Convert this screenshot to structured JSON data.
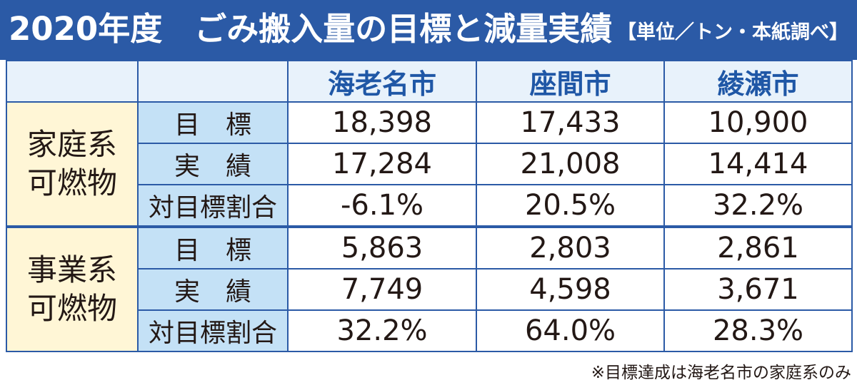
{
  "header": {
    "title": "2020年度　ごみ搬入量の目標と減量実績",
    "unit_note": "【単位／トン・本紙調べ】"
  },
  "colors": {
    "header_bg": "#2b5aa6",
    "city_header_bg": "#e8f2fb",
    "city_text": "#1f57a6",
    "group_bg": "#fff6d6",
    "metric_bg": "#c4e1f6"
  },
  "table": {
    "columns": [
      "海老名市",
      "座間市",
      "綾瀬市"
    ],
    "groups": [
      {
        "label_line1": "家庭系",
        "label_line2": "可燃物",
        "rows": [
          {
            "metric": "目　標",
            "values": [
              "18,398",
              "17,433",
              "10,900"
            ]
          },
          {
            "metric": "実　績",
            "values": [
              "17,284",
              "21,008",
              "14,414"
            ]
          },
          {
            "metric": "対目標割合",
            "values": [
              "-6.1%",
              "20.5%",
              "32.2%"
            ]
          }
        ]
      },
      {
        "label_line1": "事業系",
        "label_line2": "可燃物",
        "rows": [
          {
            "metric": "目　標",
            "values": [
              "5,863",
              "2,803",
              "2,861"
            ]
          },
          {
            "metric": "実　績",
            "values": [
              "7,749",
              "4,598",
              "3,671"
            ]
          },
          {
            "metric": "対目標割合",
            "values": [
              "32.2%",
              "64.0%",
              "28.3%"
            ]
          }
        ]
      }
    ]
  },
  "footnote": "※目標達成は海老名市の家庭系のみ"
}
